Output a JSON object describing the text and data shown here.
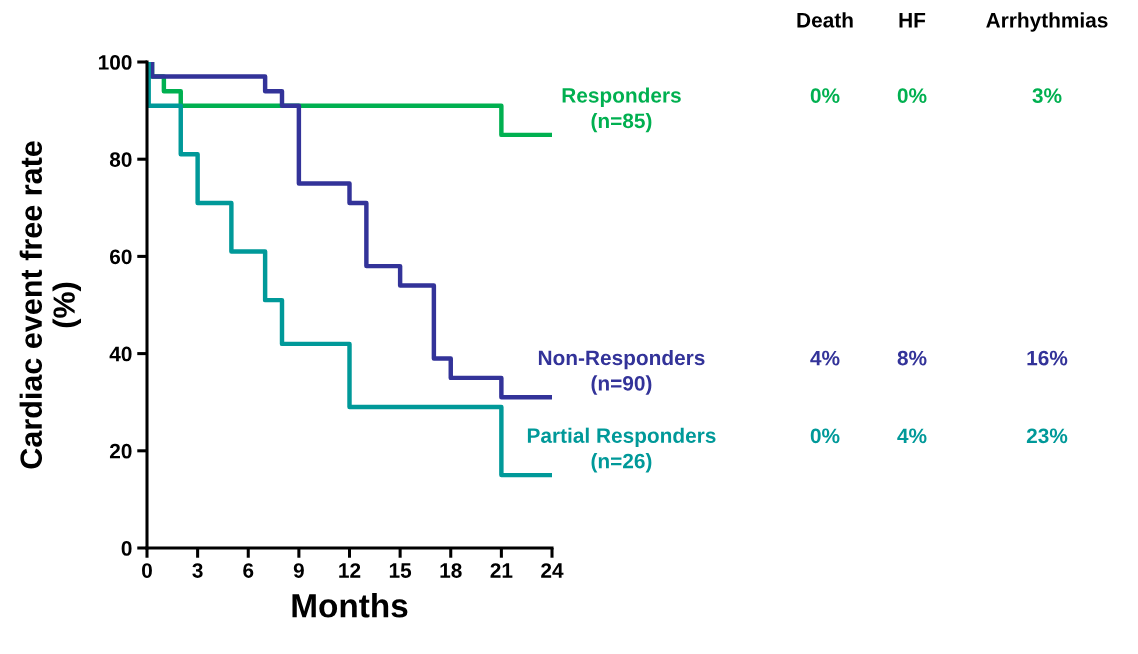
{
  "chart_data": {
    "type": "step",
    "xlabel": "Months",
    "ylabel": "Cardiac event free rate\n(%)",
    "xlim": [
      0,
      24
    ],
    "xticks": [
      0,
      3,
      6,
      9,
      12,
      15,
      18,
      21,
      24
    ],
    "ylim": [
      0,
      100
    ],
    "yticks": [
      0,
      20,
      40,
      60,
      80,
      100
    ],
    "grid": false,
    "legend": false,
    "series": [
      {
        "name": "Responders\n(n=85)",
        "color": "#00b050",
        "x": [
          0,
          0.3,
          1,
          2,
          21,
          24
        ],
        "values": [
          100,
          97,
          94,
          91,
          85,
          85
        ]
      },
      {
        "name": "Non-Responders\n(n=90)",
        "color": "#333399",
        "x": [
          0,
          0.3,
          7,
          8,
          9,
          12,
          13,
          15,
          17,
          18,
          21,
          24
        ],
        "values": [
          100,
          97,
          94,
          91,
          75,
          71,
          58,
          54,
          39,
          35,
          31,
          31
        ]
      },
      {
        "name": "Partial Responders\n(n=26)",
        "color": "#009999",
        "x": [
          0,
          0.1,
          2,
          3,
          5,
          7,
          8,
          12,
          21,
          24
        ],
        "values": [
          100,
          91,
          81,
          71,
          61,
          51,
          42,
          29,
          15,
          15
        ]
      }
    ],
    "annotations": [
      "Death",
      "HF",
      "Arrhythmias",
      "0%",
      "0%",
      "3%",
      "4%",
      "8%",
      "16%",
      "0%",
      "4%",
      "23%"
    ]
  }
}
